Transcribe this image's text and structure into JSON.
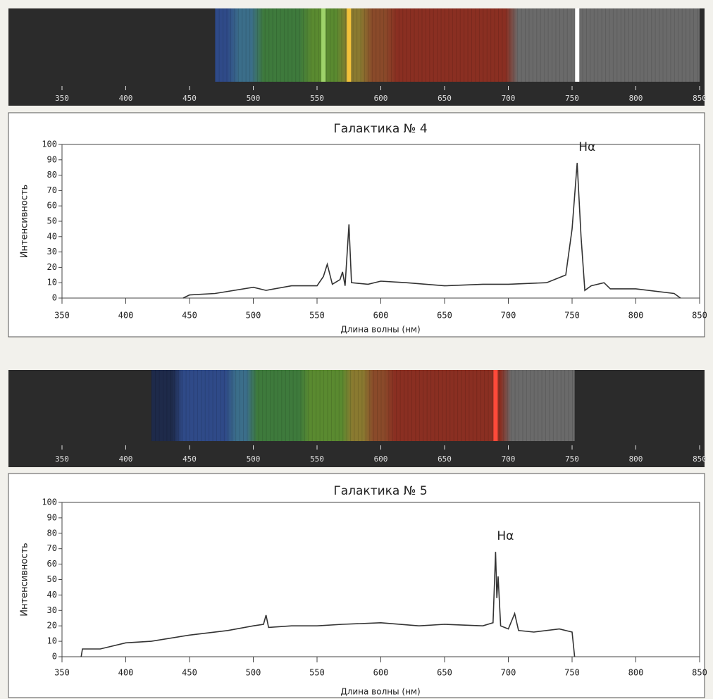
{
  "chart_data": [
    {
      "type": "spectrum",
      "xlim": [
        350,
        850
      ],
      "xticks": [
        350,
        400,
        450,
        500,
        550,
        600,
        650,
        700,
        750,
        800,
        850
      ],
      "range": [
        470,
        850
      ],
      "lines": [
        {
          "wavelength": 555,
          "color": "#9fd36a"
        },
        {
          "wavelength": 575,
          "color": "#f3c23a"
        },
        {
          "wavelength": 754,
          "color": "#ffffff"
        }
      ]
    },
    {
      "type": "line",
      "title": "Галактика № 4",
      "annotation": "Hα",
      "xlabel": "Длина волны (нм)",
      "ylabel": "Интенсивность",
      "xlim": [
        350,
        850
      ],
      "xticks": [
        350,
        400,
        450,
        500,
        550,
        600,
        650,
        700,
        750,
        800,
        850
      ],
      "ylim": [
        0,
        100
      ],
      "yticks": [
        0,
        10,
        20,
        30,
        40,
        50,
        60,
        70,
        80,
        90,
        100
      ],
      "color": "#333333",
      "x": [
        445,
        450,
        470,
        500,
        510,
        530,
        550,
        555,
        558,
        562,
        568,
        570,
        572,
        575,
        577,
        590,
        600,
        620,
        650,
        680,
        700,
        730,
        745,
        750,
        754,
        757,
        760,
        765,
        775,
        780,
        800,
        830,
        835
      ],
      "values": [
        0,
        2,
        3,
        7,
        5,
        8,
        8,
        14,
        22,
        9,
        12,
        17,
        8,
        48,
        10,
        9,
        11,
        10,
        8,
        9,
        9,
        10,
        15,
        45,
        88,
        40,
        5,
        8,
        10,
        6,
        6,
        3,
        0
      ]
    },
    {
      "type": "spectrum",
      "xlim": [
        350,
        850
      ],
      "xticks": [
        350,
        400,
        450,
        500,
        550,
        600,
        650,
        700,
        750,
        800,
        850
      ],
      "range": [
        420,
        752
      ],
      "lines": [
        {
          "wavelength": 690,
          "color": "#ff4a3a"
        }
      ]
    },
    {
      "type": "line",
      "title": "Галактика № 5",
      "annotation": "Hα",
      "xlabel": "Длина волны (нм)",
      "ylabel": "Интенсивность",
      "xlim": [
        350,
        850
      ],
      "xticks": [
        350,
        400,
        450,
        500,
        550,
        600,
        650,
        700,
        750,
        800,
        850
      ],
      "ylim": [
        0,
        100
      ],
      "yticks": [
        0,
        10,
        20,
        30,
        40,
        50,
        60,
        70,
        80,
        90,
        100
      ],
      "color": "#333333",
      "x": [
        365,
        366,
        380,
        400,
        420,
        450,
        480,
        500,
        508,
        510,
        512,
        530,
        550,
        570,
        600,
        630,
        650,
        680,
        688,
        690,
        691,
        692,
        694,
        700,
        705,
        708,
        720,
        740,
        750,
        752
      ],
      "values": [
        0,
        5,
        5,
        9,
        10,
        14,
        17,
        20,
        21,
        27,
        19,
        20,
        20,
        21,
        22,
        20,
        21,
        20,
        22,
        68,
        38,
        52,
        20,
        18,
        28,
        17,
        16,
        18,
        16,
        0
      ]
    }
  ]
}
